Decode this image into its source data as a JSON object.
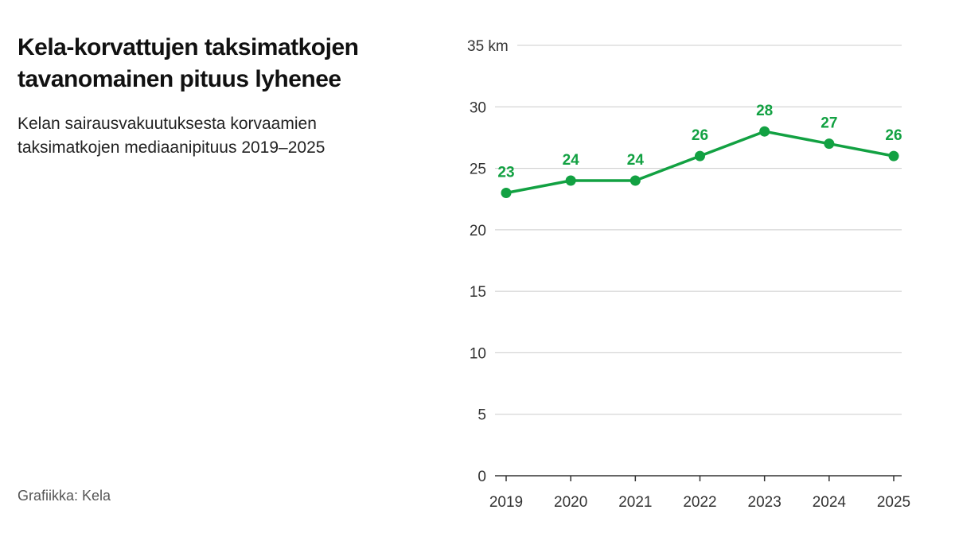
{
  "header": {
    "title": "Kela-korvattujen taksimatkojen tavanomainen pituus lyhenee",
    "subtitle": "Kelan sairausvakuutuksesta korvaamien taksimatkojen mediaanipituus 2019–2025"
  },
  "footer": {
    "source": "Grafiikka: Kela"
  },
  "chart_data": {
    "type": "line",
    "title": "Kela-korvattujen taksimatkojen tavanomainen pituus lyhenee",
    "subtitle": "Kelan sairausvakuutuksesta korvaamien taksimatkojen mediaanipituus 2019–2025",
    "categories": [
      "2019",
      "2020",
      "2021",
      "2022",
      "2023",
      "2024",
      "2025"
    ],
    "series": [
      {
        "values": [
          23,
          24,
          24,
          26,
          28,
          27,
          26
        ],
        "color": "#12a142"
      }
    ],
    "ylim": [
      0,
      35
    ],
    "y_ticks": [
      0,
      5,
      10,
      15,
      20,
      25,
      30,
      35
    ],
    "y_unit": "km",
    "grid": true,
    "data_labels": true,
    "colors": {
      "line": "#12a142",
      "grid": "#cccccc",
      "axis": "#333333"
    }
  }
}
